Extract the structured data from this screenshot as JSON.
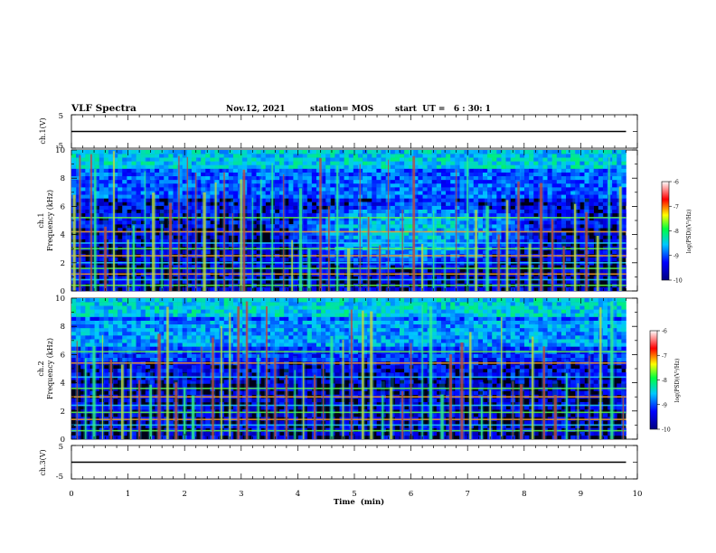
{
  "header": {
    "title": "VLF Spectra",
    "date": "Nov.12, 2021",
    "station": "station= MOS",
    "start": "start  UT =   6 : 30: 1"
  },
  "chart_data": [
    {
      "type": "line",
      "panel": "ch1-voltage",
      "ylabel": "ch.1(V)",
      "ylim": [
        -5,
        5
      ],
      "yticks": [
        "5",
        "-5"
      ],
      "x": [
        0,
        9.8
      ],
      "series": [
        {
          "values": [
            0,
            0
          ]
        }
      ]
    },
    {
      "type": "heatmap",
      "panel": "ch1-spectrogram",
      "ylabel": "ch.1\nFrequency (kHz)",
      "ylim": [
        0,
        10
      ],
      "yticks": [
        "0",
        "2",
        "4",
        "6",
        "8",
        "10"
      ],
      "xlim": [
        0,
        10
      ],
      "data_xmax": 9.8,
      "colorbar": {
        "label": "log(PSD)(V²/Hz)",
        "range": [
          -10,
          -6
        ],
        "ticks": [
          "-6",
          "-7",
          "-8",
          "-9",
          "-10"
        ]
      },
      "line_freqs_khz": [
        0.4,
        0.8,
        1.2,
        1.6,
        2.0,
        2.5,
        3.0,
        3.4,
        4.2,
        5.2
      ],
      "bursts_min": [
        0.05,
        0.15,
        0.35,
        0.42,
        0.6,
        0.75,
        1.0,
        1.1,
        1.3,
        1.45,
        1.6,
        1.75,
        1.9,
        2.05,
        2.2,
        2.35,
        2.55,
        2.7,
        2.85,
        3.0,
        3.05,
        3.2,
        3.35,
        3.55,
        3.75,
        3.9,
        4.05,
        4.2,
        4.4,
        4.55,
        4.7,
        4.9,
        5.1,
        5.25,
        5.45,
        5.6,
        5.85,
        6.05,
        6.2,
        6.4,
        6.6,
        6.8,
        7.0,
        7.15,
        7.35,
        7.55,
        7.7,
        7.9,
        8.1,
        8.3,
        8.5,
        8.7,
        8.9,
        9.1,
        9.3,
        9.5,
        9.7
      ]
    },
    {
      "type": "heatmap",
      "panel": "ch2-spectrogram",
      "ylabel": "ch.2\nFrequency (kHz)",
      "ylim": [
        0,
        10
      ],
      "yticks": [
        "0",
        "2",
        "4",
        "6",
        "8",
        "10"
      ],
      "xlim": [
        0,
        10
      ],
      "data_xmax": 9.8,
      "colorbar": {
        "label": "log(PSD)(V²/Hz)",
        "range": [
          -10,
          -6
        ],
        "ticks": [
          "-6",
          "-7",
          "-8",
          "-9",
          "-10"
        ]
      },
      "line_freqs_khz": [
        0.6,
        1.0,
        1.4,
        1.9,
        2.4,
        3.0,
        3.6,
        4.4,
        5.4,
        6.2
      ],
      "bursts_min": [
        0.1,
        0.25,
        0.4,
        0.55,
        0.7,
        0.9,
        1.05,
        1.2,
        1.4,
        1.55,
        1.7,
        1.85,
        2.0,
        2.15,
        2.3,
        2.5,
        2.65,
        2.8,
        2.95,
        3.1,
        3.3,
        3.45,
        3.6,
        3.8,
        3.95,
        4.1,
        4.3,
        4.45,
        4.6,
        4.8,
        4.95,
        5.15,
        5.3,
        5.5,
        5.65,
        5.85,
        6.0,
        6.2,
        6.35,
        6.55,
        6.7,
        6.9,
        7.05,
        7.25,
        7.4,
        7.6,
        7.8,
        7.95,
        8.15,
        8.35,
        8.55,
        8.75,
        8.95,
        9.15,
        9.35,
        9.55,
        9.75
      ]
    },
    {
      "type": "line",
      "panel": "ch3-voltage",
      "ylabel": "ch.3(V)",
      "ylim": [
        -5,
        5
      ],
      "yticks": [
        "5",
        "-5"
      ],
      "xlabel": "Time  (min)",
      "xlim": [
        0,
        10
      ],
      "xticks": [
        "0",
        "1",
        "2",
        "3",
        "4",
        "5",
        "6",
        "7",
        "8",
        "9",
        "10"
      ],
      "x": [
        0,
        9.8
      ],
      "series": [
        {
          "values": [
            0,
            0
          ]
        }
      ]
    }
  ]
}
